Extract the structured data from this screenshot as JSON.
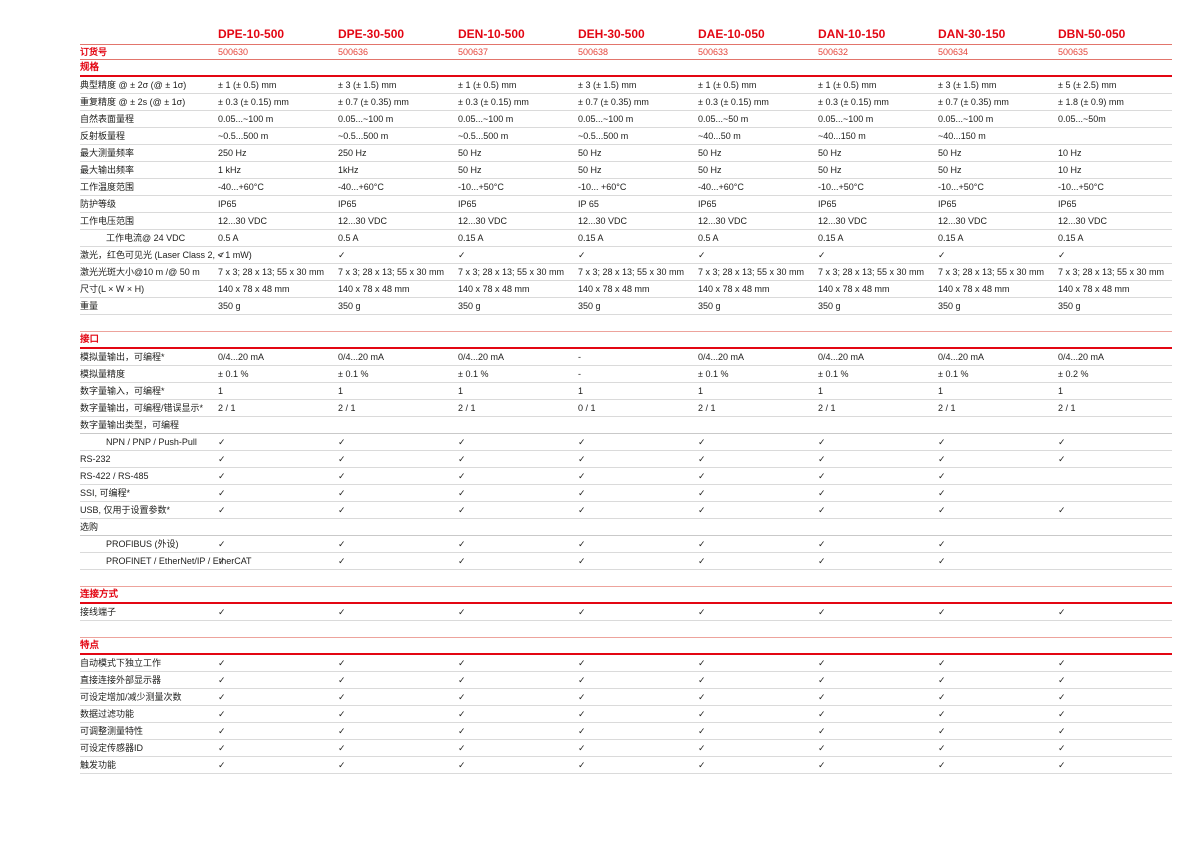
{
  "accent_color": "#e30613",
  "separator_color": "#dadada",
  "order_label": "订货号",
  "check_glyph": "✓",
  "columns": [
    {
      "model": "DPE-10-500",
      "order": "500630"
    },
    {
      "model": "DPE-30-500",
      "order": "500636"
    },
    {
      "model": "DEN-10-500",
      "order": "500637"
    },
    {
      "model": "DEH-30-500",
      "order": "500638"
    },
    {
      "model": "DAE-10-050",
      "order": "500633"
    },
    {
      "model": "DAN-10-150",
      "order": "500632"
    },
    {
      "model": "DAN-30-150",
      "order": "500634"
    },
    {
      "model": "DBN-50-050",
      "order": "500635"
    }
  ],
  "sections": [
    {
      "title": "规格",
      "rows": [
        {
          "label": "典型精度 @ ± 2σ (@ ± 1σ)",
          "values": [
            "± 1 (± 0.5) mm",
            "± 3 (± 1.5) mm",
            "± 1 (± 0.5) mm",
            "± 3 (± 1.5) mm",
            "± 1 (± 0.5) mm",
            "± 1 (± 0.5) mm",
            "± 3 (± 1.5) mm",
            "± 5 (± 2.5) mm"
          ]
        },
        {
          "label": "重复精度 @ ± 2s (@ ± 1σ)",
          "values": [
            "± 0.3 (± 0.15) mm",
            "± 0.7 (± 0.35) mm",
            "± 0.3 (± 0.15) mm",
            "± 0.7 (± 0.35) mm",
            "± 0.3 (± 0.15) mm",
            "± 0.3 (± 0.15) mm",
            "± 0.7 (± 0.35) mm",
            "± 1.8 (± 0.9) mm"
          ]
        },
        {
          "label": "自然表面量程",
          "values": [
            "0.05...~100 m",
            "0.05...~100 m",
            "0.05...~100 m",
            "0.05...~100 m",
            "0.05...~50 m",
            "0.05...~100 m",
            "0.05...~100 m",
            "0.05...~50m"
          ]
        },
        {
          "label": "反射板量程",
          "values": [
            "~0.5...500 m",
            "~0.5...500 m",
            "~0.5...500 m",
            "~0.5...500 m",
            "~40...50 m",
            "~40...150 m",
            "~40...150 m",
            ""
          ]
        },
        {
          "label": "最大测量频率",
          "values": [
            "250 Hz",
            "250 Hz",
            "50 Hz",
            "50 Hz",
            "50 Hz",
            "50 Hz",
            "50 Hz",
            "10 Hz"
          ]
        },
        {
          "label": "最大输出频率",
          "values": [
            "1 kHz",
            "1kHz",
            "50 Hz",
            "50 Hz",
            "50 Hz",
            "50 Hz",
            "50 Hz",
            "10 Hz"
          ]
        },
        {
          "label": "工作温度范围",
          "values": [
            "-40...+60°C",
            "-40...+60°C",
            "-10...+50°C",
            "-10... +60°C",
            "-40...+60°C",
            "-10...+50°C",
            "-10...+50°C",
            "-10...+50°C"
          ]
        },
        {
          "label": "防护等级",
          "values": [
            "IP65",
            "IP65",
            "IP65",
            "IP 65",
            "IP65",
            "IP65",
            "IP65",
            "IP65"
          ]
        },
        {
          "label": "工作电压范围",
          "values": [
            "12...30 VDC",
            "12...30 VDC",
            "12...30 VDC",
            "12...30 VDC",
            "12...30 VDC",
            "12...30 VDC",
            "12...30 VDC",
            "12...30 VDC"
          ]
        },
        {
          "label": "工作电流@ 24 VDC",
          "indent": true,
          "values": [
            "0.5 A",
            "0.5 A",
            "0.15 A",
            "0.15 A",
            "0.5 A",
            "0.15 A",
            "0.15 A",
            "0.15 A"
          ]
        },
        {
          "label": "激光，红色可见光 (Laser Class 2, < 1 mW)",
          "values": [
            "✓",
            "✓",
            "✓",
            "✓",
            "✓",
            "✓",
            "✓",
            "✓"
          ]
        },
        {
          "label": "激光光斑大小@10 m /@ 50 m",
          "values": [
            "7 x 3; 28 x 13; 55 x 30 mm",
            "7 x 3; 28 x 13; 55 x 30 mm",
            "7 x 3; 28 x 13; 55 x 30 mm",
            "7 x 3; 28 x 13; 55 x 30 mm",
            "7 x 3; 28 x 13; 55 x 30 mm",
            "7 x 3; 28 x 13; 55 x 30 mm",
            "7 x 3; 28 x 13; 55 x 30 mm",
            "7 x 3; 28 x 13; 55 x 30 mm"
          ]
        },
        {
          "label": "尺寸(L × W × H)",
          "values": [
            "140 x 78 x 48 mm",
            "140 x 78 x 48 mm",
            "140 x 78 x 48 mm",
            "140 x 78 x 48 mm",
            "140 x 78 x 48 mm",
            "140 x 78 x 48 mm",
            "140 x 78 x 48 mm",
            "140 x 78 x 48 mm"
          ]
        },
        {
          "label": "重量",
          "values": [
            "350 g",
            "350 g",
            "350 g",
            "350 g",
            "350 g",
            "350 g",
            "350 g",
            "350 g"
          ]
        }
      ]
    },
    {
      "title": "接口",
      "rows": [
        {
          "label": "模拟量输出，可编程*",
          "values": [
            "0/4...20 mA",
            "0/4...20 mA",
            "0/4...20 mA",
            "-",
            "0/4...20 mA",
            "0/4...20 mA",
            "0/4...20 mA",
            "0/4...20 mA"
          ]
        },
        {
          "label": "模拟量精度",
          "values": [
            "± 0.1 %",
            "± 0.1 %",
            "± 0.1 %",
            "-",
            "± 0.1 %",
            "± 0.1 %",
            "± 0.1 %",
            "± 0.2 %"
          ]
        },
        {
          "label": "数字量输入，可编程*",
          "values": [
            "1",
            "1",
            "1",
            "1",
            "1",
            "1",
            "1",
            "1"
          ]
        },
        {
          "label": "数字量输出，可编程/错误显示*",
          "values": [
            "2 / 1",
            "2 / 1",
            "2 / 1",
            "0 / 1",
            "2 / 1",
            "2 / 1",
            "2 / 1",
            "2 / 1"
          ]
        },
        {
          "label": "数字量输出类型，可编程",
          "type": "subheader",
          "values": [
            "",
            "",
            "",
            "",
            "",
            "",
            "",
            ""
          ]
        },
        {
          "label": "NPN / PNP / Push-Pull",
          "indent": true,
          "values": [
            "✓",
            "✓",
            "✓",
            "✓",
            "✓",
            "✓",
            "✓",
            "✓"
          ]
        },
        {
          "label": "RS-232",
          "values": [
            "✓",
            "✓",
            "✓",
            "✓",
            "✓",
            "✓",
            "✓",
            "✓"
          ]
        },
        {
          "label": "RS-422 / RS-485",
          "values": [
            "✓",
            "✓",
            "✓",
            "✓",
            "✓",
            "✓",
            "✓",
            ""
          ]
        },
        {
          "label": "SSI, 可编程*",
          "values": [
            "✓",
            "✓",
            "✓",
            "✓",
            "✓",
            "✓",
            "✓",
            ""
          ]
        },
        {
          "label": "USB, 仅用于设置参数*",
          "values": [
            "✓",
            "✓",
            "✓",
            "✓",
            "✓",
            "✓",
            "✓",
            "✓"
          ]
        },
        {
          "label": "选购",
          "type": "subheader",
          "values": [
            "",
            "",
            "",
            "",
            "",
            "",
            "",
            ""
          ]
        },
        {
          "label": "PROFIBUS (外设)",
          "indent": true,
          "values": [
            "✓",
            "✓",
            "✓",
            "✓",
            "✓",
            "✓",
            "✓",
            ""
          ]
        },
        {
          "label": "PROFINET / EtherNet/IP / EtherCAT",
          "indent": true,
          "values": [
            "✓",
            "✓",
            "✓",
            "✓",
            "✓",
            "✓",
            "✓",
            ""
          ]
        }
      ]
    },
    {
      "title": "连接方式",
      "rows": [
        {
          "label": "接线端子",
          "values": [
            "✓",
            "✓",
            "✓",
            "✓",
            "✓",
            "✓",
            "✓",
            "✓"
          ]
        }
      ]
    },
    {
      "title": "特点",
      "rows": [
        {
          "label": "自动模式下独立工作",
          "values": [
            "✓",
            "✓",
            "✓",
            "✓",
            "✓",
            "✓",
            "✓",
            "✓"
          ]
        },
        {
          "label": "直接连接外部显示器",
          "values": [
            "✓",
            "✓",
            "✓",
            "✓",
            "✓",
            "✓",
            "✓",
            "✓"
          ]
        },
        {
          "label": "可设定增加/减少测量次数",
          "values": [
            "✓",
            "✓",
            "✓",
            "✓",
            "✓",
            "✓",
            "✓",
            "✓"
          ]
        },
        {
          "label": "数据过滤功能",
          "values": [
            "✓",
            "✓",
            "✓",
            "✓",
            "✓",
            "✓",
            "✓",
            "✓"
          ]
        },
        {
          "label": "可调整测量特性",
          "values": [
            "✓",
            "✓",
            "✓",
            "✓",
            "✓",
            "✓",
            "✓",
            "✓"
          ]
        },
        {
          "label": "可设定传感器ID",
          "values": [
            "✓",
            "✓",
            "✓",
            "✓",
            "✓",
            "✓",
            "✓",
            "✓"
          ]
        },
        {
          "label": "触发功能",
          "values": [
            "✓",
            "✓",
            "✓",
            "✓",
            "✓",
            "✓",
            "✓",
            "✓"
          ]
        }
      ]
    }
  ]
}
